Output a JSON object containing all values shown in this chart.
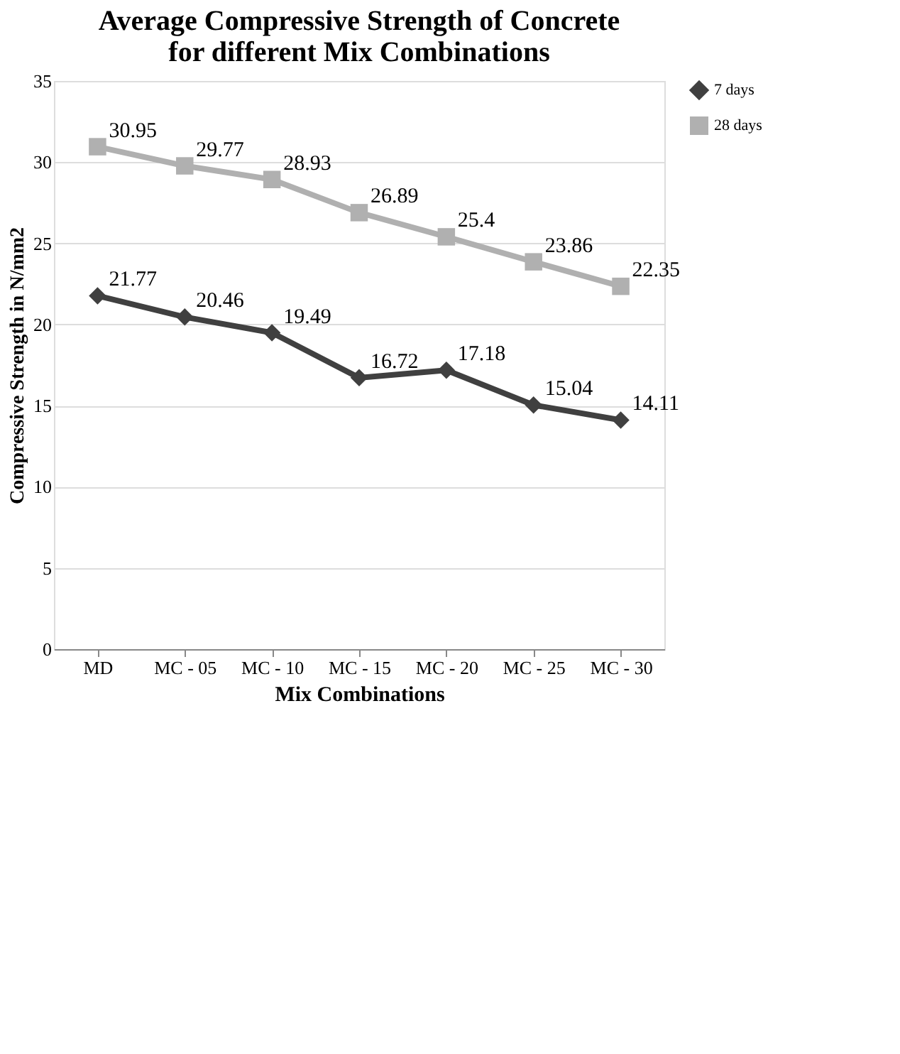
{
  "chart_data": {
    "type": "line",
    "title": "Average Compressive Strength of Concrete for different Mix Combinations",
    "xlabel": "Mix Combinations",
    "ylabel": "Compressive Strength in N/mm2",
    "categories": [
      "MD",
      "MC - 05",
      "MC - 10",
      "MC - 15",
      "MC - 20",
      "MC - 25",
      "MC - 30"
    ],
    "series": [
      {
        "name": "7 days",
        "color": "#404040",
        "marker": "diamond",
        "values": [
          21.77,
          20.46,
          19.49,
          16.72,
          17.18,
          15.04,
          14.11
        ]
      },
      {
        "name": "28 days",
        "color": "#b0b0b0",
        "marker": "square",
        "values": [
          30.95,
          29.77,
          28.93,
          26.89,
          25.4,
          23.86,
          22.35
        ]
      }
    ],
    "ylim": [
      0,
      35
    ],
    "yticks": [
      0,
      5,
      10,
      15,
      20,
      25,
      30,
      35
    ],
    "grid": "y",
    "legend": "right",
    "data_labels": true,
    "line_style": "solid"
  }
}
